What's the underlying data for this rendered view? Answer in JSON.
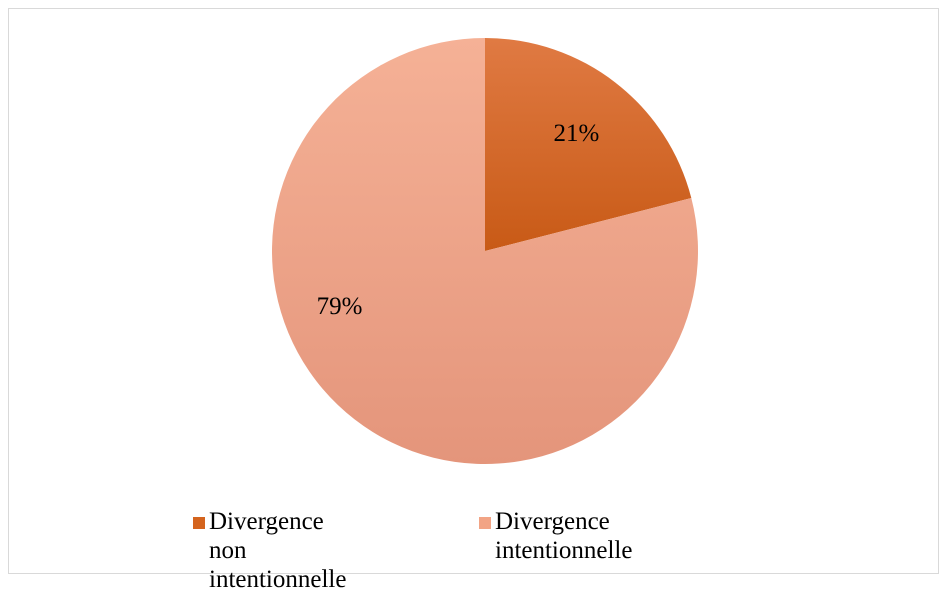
{
  "chart_data": {
    "type": "pie",
    "slices": [
      {
        "label": "Divergence\nnon intentionnelle",
        "value": 21,
        "display": "21%",
        "color": "#D4641E"
      },
      {
        "label": "Divergence intentionnelle",
        "value": 79,
        "display": "79%",
        "color": "#F2A485"
      }
    ],
    "legend_position": "bottom",
    "start_angle": "12 o'clock",
    "direction": "clockwise"
  }
}
